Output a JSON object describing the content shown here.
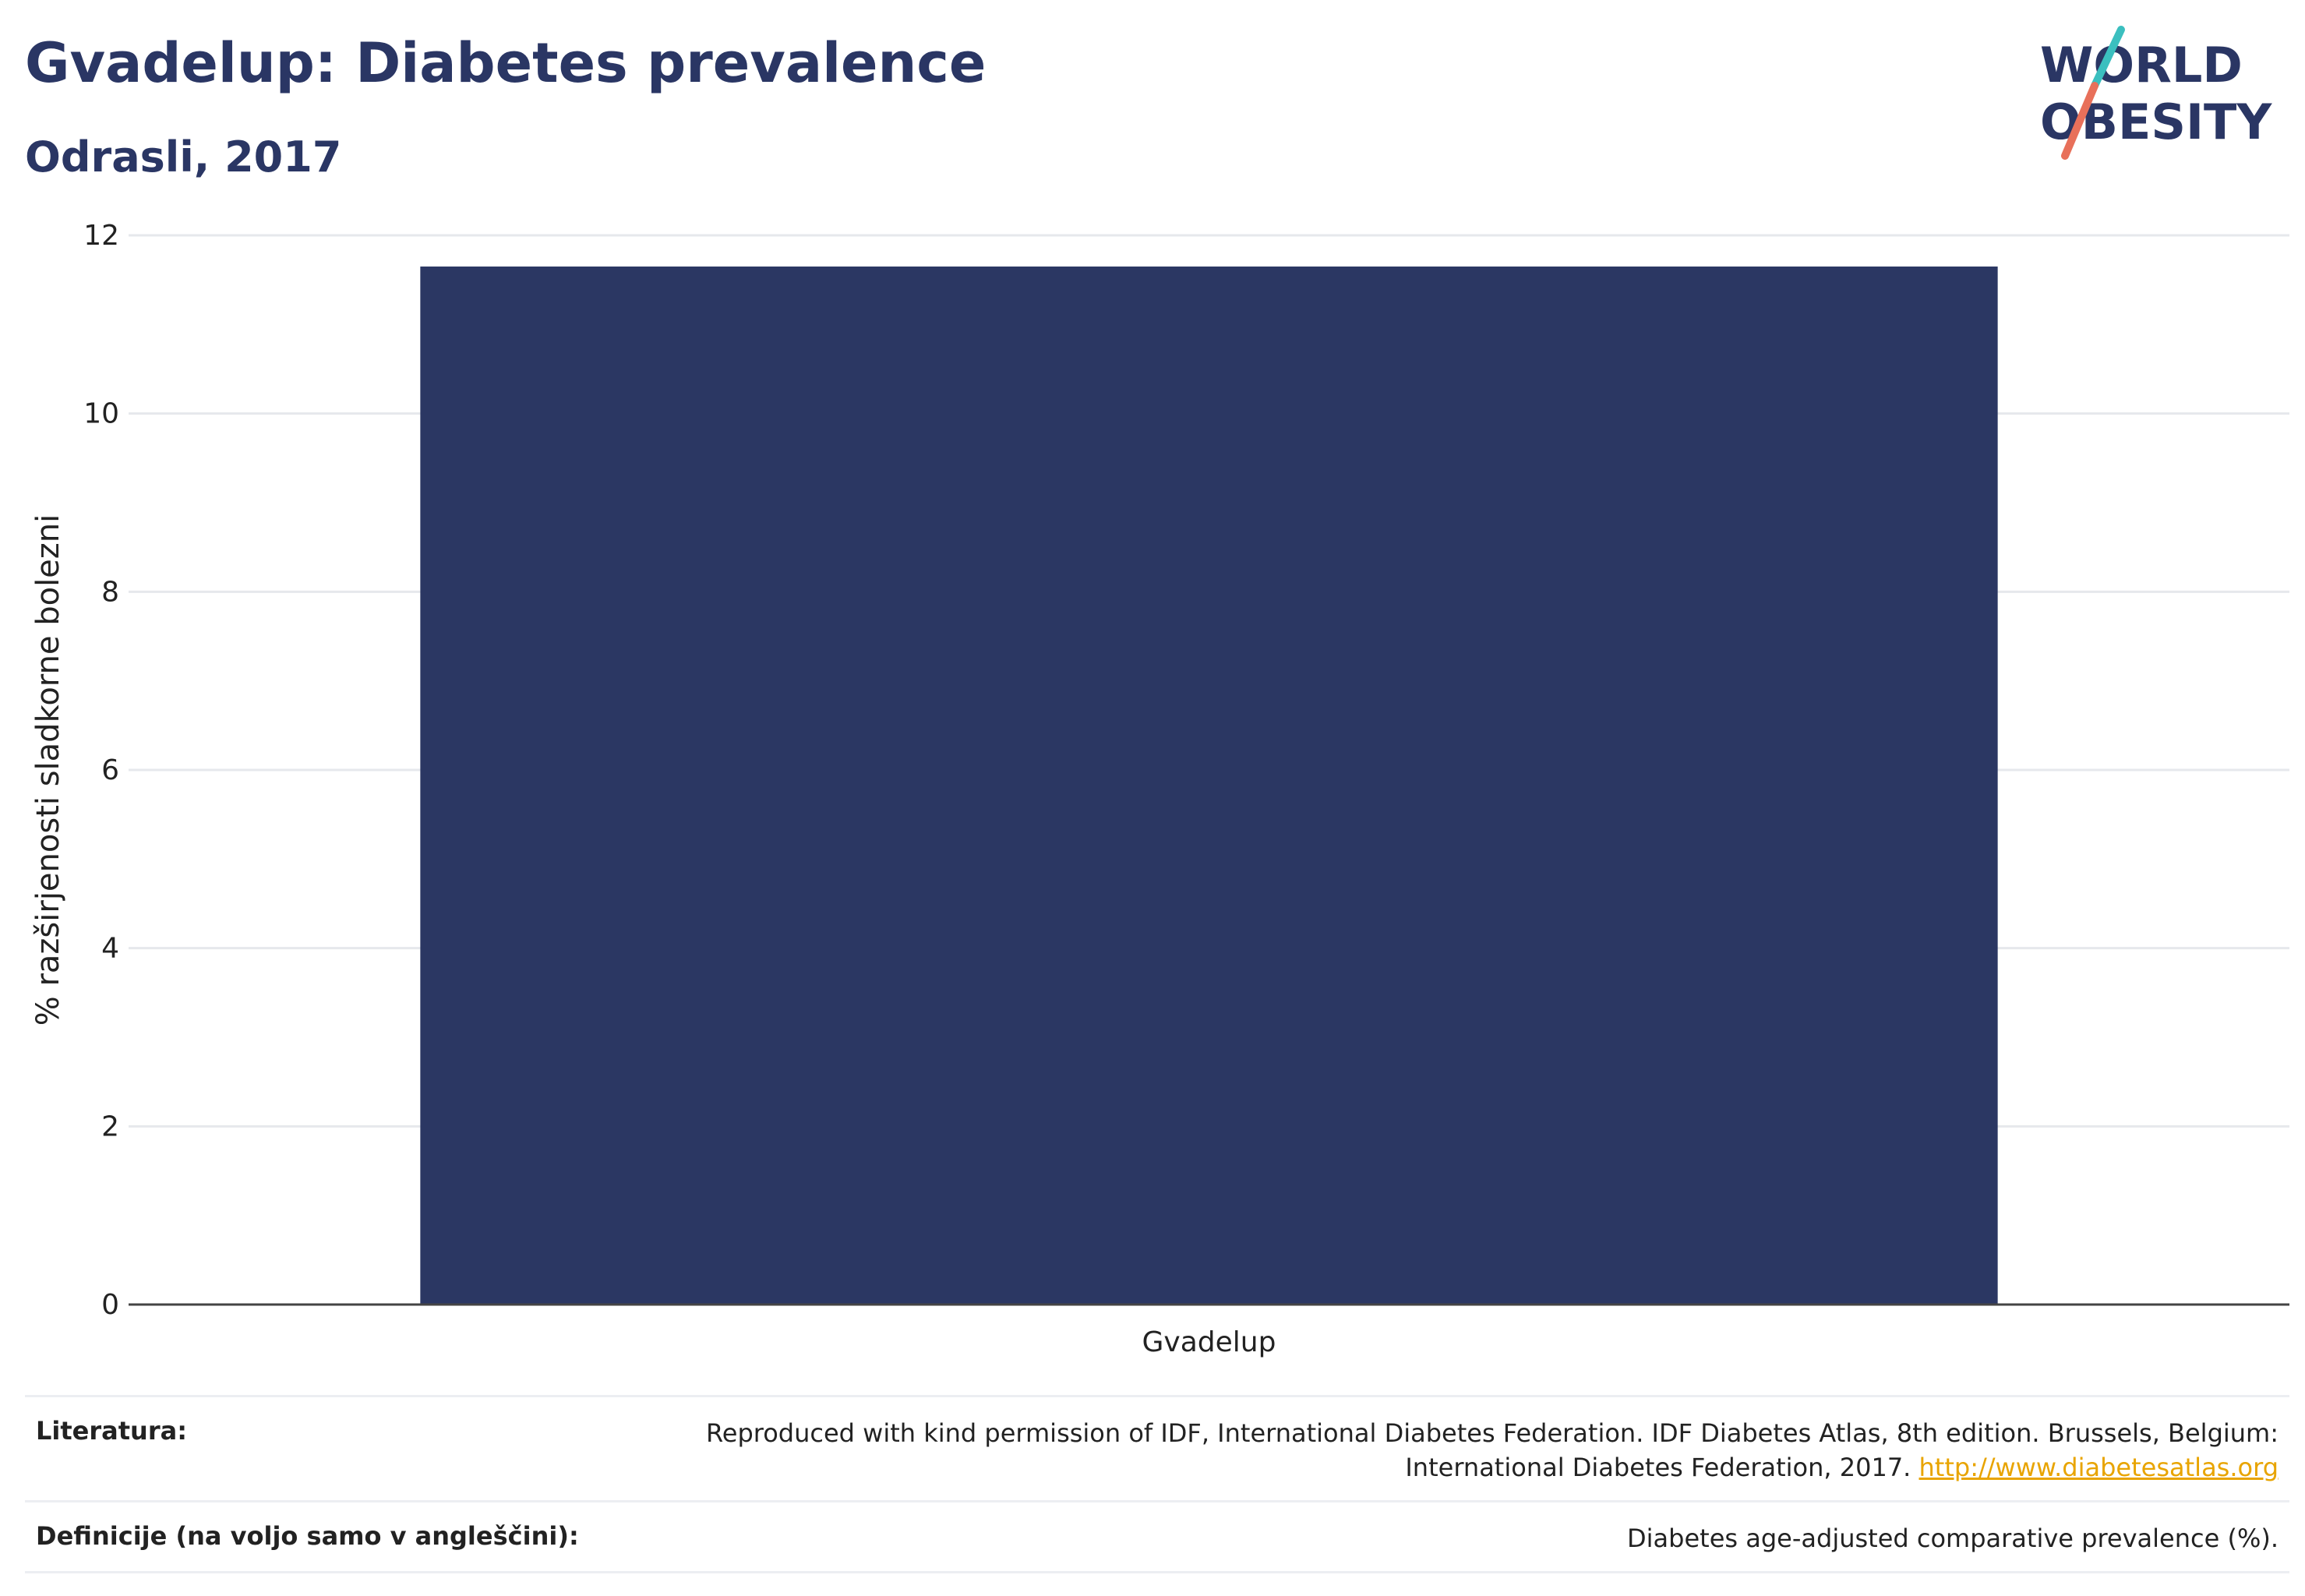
{
  "header": {
    "title": "Gvadelup: Diabetes prevalence",
    "subtitle": "Odrasli, 2017"
  },
  "logo": {
    "line1": "WORLD",
    "line2": "OBESITY",
    "colors": {
      "text": "#2a3664",
      "slash_top": "#3bbfbf",
      "slash_bottom": "#e8705a"
    }
  },
  "chart_data": {
    "type": "bar",
    "categories": [
      "Gvadelup"
    ],
    "values": [
      11.65
    ],
    "ylabel": "% razširjenosti sladkorne bolezni",
    "ylim": [
      0,
      12
    ],
    "yticks": [
      0,
      2,
      4,
      6,
      8,
      10,
      12
    ],
    "grid": true,
    "bar_color": "#2b3763"
  },
  "footer": {
    "literature_label": "Literatura:",
    "literature_text_line1": "Reproduced with kind permission of IDF, International Diabetes Federation. IDF Diabetes Atlas, 8th edition. Brussels, Belgium:",
    "literature_text_line2": "International Diabetes Federation, 2017.",
    "literature_link": "http://www.diabetesatlas.org",
    "definitions_label": "Definicije (na voljo samo v angleščini):",
    "definitions_text": "Diabetes age-adjusted comparative prevalence (%)."
  }
}
